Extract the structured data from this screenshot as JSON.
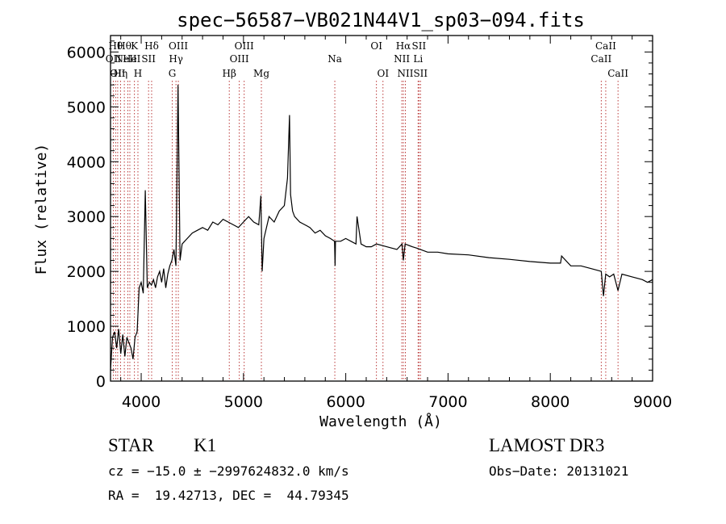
{
  "title": "spec−56587−VB021N44V1_sp03−094.fits",
  "chart_data": {
    "type": "line",
    "xlabel": "Wavelength (Å)",
    "ylabel": "Flux (relative)",
    "xlim": [
      3700,
      9000
    ],
    "ylim": [
      0,
      6300
    ],
    "x_ticks": [
      4000,
      5000,
      6000,
      7000,
      8000,
      9000
    ],
    "y_ticks": [
      0,
      1000,
      2000,
      3000,
      4000,
      5000,
      6000
    ],
    "series": [
      {
        "color": "#000000",
        "x": [
          3700,
          3720,
          3740,
          3760,
          3780,
          3800,
          3820,
          3840,
          3860,
          3880,
          3900,
          3920,
          3940,
          3960,
          3980,
          4000,
          4020,
          4040,
          4060,
          4080,
          4100,
          4120,
          4140,
          4160,
          4180,
          4200,
          4220,
          4240,
          4260,
          4280,
          4300,
          4320,
          4340,
          4360,
          4380,
          4400,
          4450,
          4500,
          4550,
          4600,
          4650,
          4700,
          4750,
          4800,
          4850,
          4900,
          4950,
          5000,
          5050,
          5100,
          5150,
          5170,
          5183,
          5200,
          5250,
          5300,
          5350,
          5400,
          5430,
          5450,
          5460,
          5480,
          5500,
          5550,
          5600,
          5650,
          5700,
          5750,
          5800,
          5850,
          5890,
          5896,
          5900,
          5950,
          6000,
          6050,
          6100,
          6110,
          6150,
          6200,
          6250,
          6300,
          6400,
          6500,
          6550,
          6563,
          6580,
          6650,
          6700,
          6800,
          6900,
          7000,
          7200,
          7400,
          7600,
          7800,
          8000,
          8100,
          8110,
          8200,
          8300,
          8400,
          8498,
          8520,
          8542,
          8580,
          8620,
          8662,
          8700,
          8800,
          8900,
          8950,
          9000
        ],
        "values": [
          200,
          800,
          900,
          600,
          950,
          500,
          850,
          450,
          800,
          700,
          600,
          400,
          800,
          900,
          1700,
          1800,
          1600,
          3480,
          1700,
          1800,
          1750,
          1850,
          1700,
          1900,
          2000,
          1800,
          2050,
          1700,
          1950,
          2100,
          2200,
          2400,
          2100,
          5400,
          2200,
          2500,
          2600,
          2700,
          2750,
          2800,
          2750,
          2900,
          2850,
          2950,
          2900,
          2850,
          2800,
          2900,
          3000,
          2900,
          2850,
          3380,
          2000,
          2600,
          3000,
          2900,
          3100,
          3200,
          3700,
          4850,
          3400,
          3100,
          3000,
          2900,
          2850,
          2800,
          2700,
          2750,
          2650,
          2600,
          2550,
          2100,
          2550,
          2550,
          2600,
          2550,
          2500,
          3000,
          2500,
          2450,
          2450,
          2500,
          2450,
          2400,
          2500,
          2200,
          2500,
          2450,
          2420,
          2350,
          2350,
          2320,
          2300,
          2250,
          2220,
          2180,
          2150,
          2150,
          2280,
          2100,
          2100,
          2050,
          2000,
          1550,
          1950,
          1900,
          1950,
          1650,
          1950,
          1900,
          1850,
          1800,
          1850
        ]
      }
    ],
    "spectral_lines": [
      {
        "x": 3727,
        "label": "OII",
        "row": 1
      },
      {
        "x": 3750,
        "label": "Hθ",
        "row": 0
      },
      {
        "x": 3770,
        "label": "OII",
        "row": 2
      },
      {
        "x": 3798,
        "label": "Hη",
        "row": 2
      },
      {
        "x": 3835,
        "label": "Hθ",
        "row": 0
      },
      {
        "x": 3869,
        "label": "NeIII",
        "row": 1
      },
      {
        "x": 3889,
        "label": "He",
        "row": 1
      },
      {
        "x": 3934,
        "label": "K",
        "row": 0
      },
      {
        "x": 3968,
        "label": "H",
        "row": 2
      },
      {
        "x": 4072,
        "label": "SII",
        "row": 1
      },
      {
        "x": 4102,
        "label": "Hδ",
        "row": 0
      },
      {
        "x": 4304,
        "label": "G",
        "row": 2
      },
      {
        "x": 4340,
        "label": "Hγ",
        "row": 1
      },
      {
        "x": 4363,
        "label": "OIII",
        "row": 0
      },
      {
        "x": 4861,
        "label": "Hβ",
        "row": 2
      },
      {
        "x": 4959,
        "label": "OIII",
        "row": 1
      },
      {
        "x": 5007,
        "label": "OIII",
        "row": 0
      },
      {
        "x": 5175,
        "label": "Mg",
        "row": 2
      },
      {
        "x": 5893,
        "label": "Na",
        "row": 1
      },
      {
        "x": 6300,
        "label": "OI",
        "row": 0
      },
      {
        "x": 6364,
        "label": "OI",
        "row": 2
      },
      {
        "x": 6548,
        "label": "NII",
        "row": 1
      },
      {
        "x": 6563,
        "label": "Hα",
        "row": 0
      },
      {
        "x": 6583,
        "label": "NII",
        "row": 2
      },
      {
        "x": 6707,
        "label": "Li",
        "row": 1
      },
      {
        "x": 6716,
        "label": "SII",
        "row": 0
      },
      {
        "x": 6731,
        "label": "SII",
        "row": 2
      },
      {
        "x": 8498,
        "label": "CaII",
        "row": 1
      },
      {
        "x": 8542,
        "label": "CaII",
        "row": 0
      },
      {
        "x": 8662,
        "label": "CaII",
        "row": 2
      }
    ],
    "colors": {
      "spectrum": "#000000",
      "line_marker": "#b22222",
      "axes": "#000000"
    }
  },
  "info": {
    "class": "STAR",
    "subclass": "K1",
    "survey": "LAMOST DR3",
    "cz": "cz = −15.0 ± −2997624832.0 km/s",
    "obs_date": "Obs−Date: 20131021",
    "coords": "RA =  19.42713, DEC =  44.79345"
  }
}
